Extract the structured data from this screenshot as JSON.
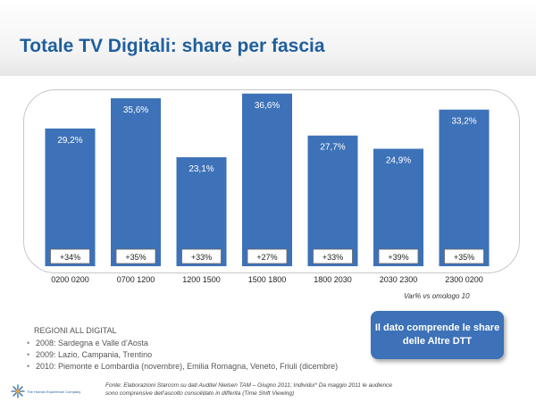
{
  "page": {
    "title": "Totale TV Digitali: share per fascia"
  },
  "chart_data": {
    "type": "bar",
    "categories": [
      "0200 0200",
      "0700 1200",
      "1200 1500",
      "1500 1800",
      "1800 2030",
      "2030 2300",
      "2300 0200"
    ],
    "values": [
      29.2,
      35.6,
      23.1,
      36.6,
      27.7,
      24.9,
      33.2
    ],
    "value_labels": [
      "29,2%",
      "35,6%",
      "23,1%",
      "36,6%",
      "27,7%",
      "24,9%",
      "33,2%"
    ],
    "changes": [
      "+34%",
      "+35%",
      "+33%",
      "+27%",
      "+33%",
      "+39%",
      "+35%"
    ],
    "bar_color": "#3d72b8",
    "grid": false,
    "legend": "none",
    "ylim": [
      0,
      40
    ]
  },
  "change_note": "Var% vs omologo 10",
  "callout": {
    "text": "Il dato comprende le share delle Altre DTT"
  },
  "regions": {
    "title": "REGIONI ALL DIGITAL",
    "items": [
      "2008: Sardegna e Valle d’Aosta",
      "2009: Lazio, Campania, Trentino",
      "2010: Piemonte e Lombardia (novembre), Emilia Romagna, Veneto, Friuli (dicembre)"
    ]
  },
  "footer": {
    "logo_text": "The Human Experience Company",
    "source_line1": "Fonte: Elaborazioni Starcom su dati Auditel Nielsen TAM – Giugno 2011; Individui* Da  maggio 2011 le audience",
    "source_line2": "sono comprensive dell’ascolto consolidato in differita (Time Shift Viewing)"
  },
  "colors": {
    "title": "#1f5f9e",
    "bar": "#3d72b8",
    "callout": "#3d72b8"
  }
}
